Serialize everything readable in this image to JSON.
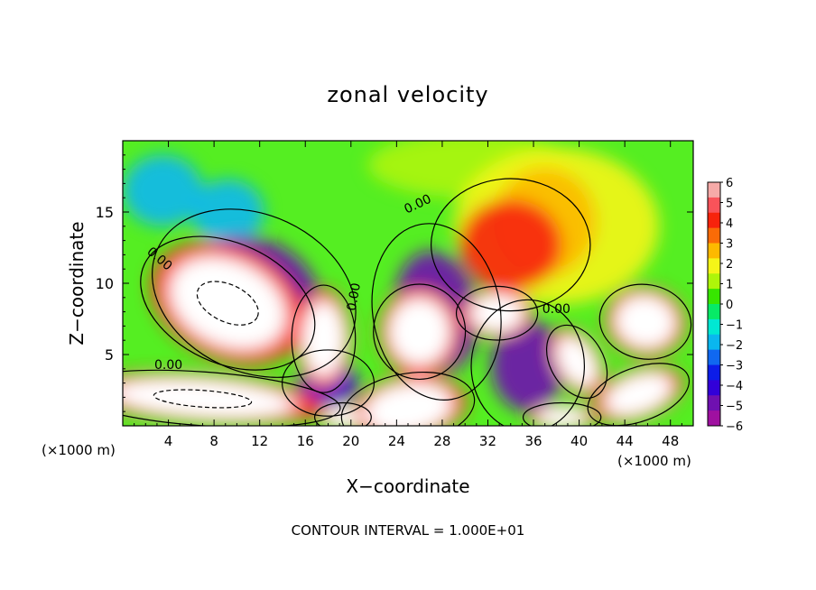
{
  "chart_data": {
    "type": "heatmap",
    "title": "zonal velocity",
    "xlabel": "X−coordinate",
    "ylabel": "Z−coordinate",
    "x_unit_left": "(×1000 m)",
    "x_unit_right": "(×1000 m)",
    "xlim": [
      0,
      50
    ],
    "ylim": [
      0,
      20
    ],
    "xticks": [
      4,
      8,
      12,
      16,
      20,
      24,
      28,
      32,
      36,
      40,
      44,
      48
    ],
    "yticks": [
      5,
      10,
      15
    ],
    "footer": "CONTOUR INTERVAL = 1.000E+01",
    "contour_labels": [
      {
        "text": "0.00",
        "x": 3.0,
        "y": 11.5,
        "rot": -40
      },
      {
        "text": "0.00",
        "x": 26.0,
        "y": 15.3,
        "rot": 25
      },
      {
        "text": "0.00",
        "x": 20.6,
        "y": 9.0,
        "rot": 80
      },
      {
        "text": "0.00",
        "x": 38.0,
        "y": 7.9,
        "rot": 0
      },
      {
        "text": "0.00",
        "x": 4.0,
        "y": 4.0,
        "rot": 0
      }
    ],
    "colorbar": {
      "min": -6,
      "max": 6,
      "ticks": [
        6,
        5,
        4,
        3,
        2,
        1,
        0,
        -1,
        -2,
        -3,
        -4,
        -5,
        -6
      ],
      "tick_labels": [
        "6",
        "5",
        "4",
        "3",
        "2",
        "1",
        "0",
        "−1",
        "−2",
        "−3",
        "−4",
        "−5",
        "−6"
      ],
      "colors": [
        "#f6aaa8",
        "#f9535a",
        "#f7230c",
        "#fa6b07",
        "#fdb900",
        "#f5f518",
        "#aef50a",
        "#37e600",
        "#07ea66",
        "#00e8d3",
        "#0ab7ef",
        "#1068f0",
        "#0c1de8",
        "#3200d8",
        "#6f10b0",
        "#9f10a0"
      ]
    },
    "regions": [
      {
        "value": 7,
        "cx": 9.2,
        "cy": 8.6,
        "rx": 5.2,
        "ry": 2.9,
        "rot": -25
      },
      {
        "value": 7,
        "cx": 17.6,
        "cy": 6.1,
        "rx": 1.8,
        "ry": 2.6,
        "rot": 0
      },
      {
        "value": 7,
        "cx": 26.0,
        "cy": 6.6,
        "rx": 2.6,
        "ry": 2.3,
        "rot": 0
      },
      {
        "value": 7,
        "cx": 32.8,
        "cy": 7.9,
        "rx": 2.3,
        "ry": 1.3,
        "rot": 0
      },
      {
        "value": 7,
        "cx": 45.8,
        "cy": 7.3,
        "rx": 2.6,
        "ry": 1.8,
        "rot": -10
      },
      {
        "value": 7,
        "cx": 7.0,
        "cy": 1.9,
        "rx": 7.8,
        "ry": 1.3,
        "rot": -4
      },
      {
        "value": 7,
        "cx": 25.0,
        "cy": 1.2,
        "rx": 3.8,
        "ry": 1.7,
        "rot": 10
      },
      {
        "value": 7,
        "cx": 39.8,
        "cy": 4.5,
        "rx": 1.5,
        "ry": 1.9,
        "rot": 30
      },
      {
        "value": 7,
        "cx": 45.2,
        "cy": 2.2,
        "rx": 3.0,
        "ry": 1.3,
        "rot": 20
      },
      {
        "value": 7,
        "cx": 38.5,
        "cy": 0.6,
        "rx": 2.2,
        "ry": 0.7,
        "rot": 0
      },
      {
        "value": 7,
        "cx": 19.3,
        "cy": 0.6,
        "rx": 1.6,
        "ry": 0.7,
        "rot": 0
      },
      {
        "value": -5,
        "cx": 11.5,
        "cy": 9.3,
        "rx": 6.0,
        "ry": 3.8,
        "rot": -25
      },
      {
        "value": -5,
        "cx": 27.5,
        "cy": 8.0,
        "rx": 3.6,
        "ry": 4.3,
        "rot": 10
      },
      {
        "value": -5,
        "cx": 35.5,
        "cy": 4.2,
        "rx": 3.2,
        "ry": 3.2,
        "rot": 0
      },
      {
        "value": -4,
        "cx": 18.0,
        "cy": 3.0,
        "rx": 2.6,
        "ry": 1.6,
        "rot": 0
      },
      {
        "value": 4,
        "cx": 34.0,
        "cy": 12.7,
        "rx": 4.5,
        "ry": 3.2,
        "rot": 0
      },
      {
        "value": 3,
        "cx": 37.0,
        "cy": 14.3,
        "rx": 4.5,
        "ry": 3.8,
        "rot": 0
      },
      {
        "value": 2,
        "cx": 38.0,
        "cy": 14.0,
        "rx": 9.0,
        "ry": 5.5,
        "rot": 0
      },
      {
        "value": 1,
        "cx": 30.5,
        "cy": 18.3,
        "rx": 9.0,
        "ry": 2.3,
        "rot": 0
      },
      {
        "value": -2,
        "cx": 3.5,
        "cy": 16.5,
        "rx": 3.5,
        "ry": 2.5,
        "rot": 0
      },
      {
        "value": -2,
        "cx": 9.2,
        "cy": 15.0,
        "rx": 3.2,
        "ry": 2.3,
        "rot": 0
      }
    ]
  }
}
